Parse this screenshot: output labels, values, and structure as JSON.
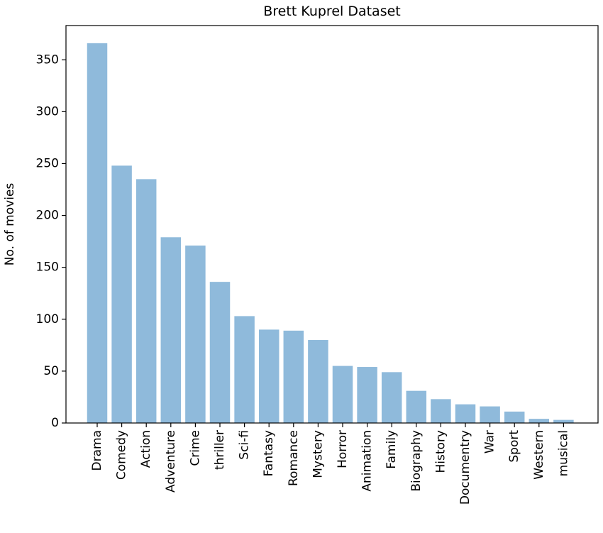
{
  "chart_data": {
    "type": "bar",
    "title": "Brett Kuprel Dataset",
    "xlabel": "",
    "ylabel": "No. of movies",
    "categories": [
      "Drama",
      "Comedy",
      "Action",
      "Adventure",
      "Crime",
      "thriller",
      "Sci-fi",
      "Fantasy",
      "Romance",
      "Mystery",
      "Horror",
      "Animation",
      "Family",
      "Biography",
      "History",
      "Documentry",
      "War",
      "Sport",
      "Western",
      "musical"
    ],
    "values": [
      366,
      248,
      235,
      179,
      171,
      136,
      103,
      90,
      89,
      80,
      55,
      54,
      49,
      31,
      23,
      18,
      16,
      11,
      4,
      3
    ],
    "ylim": [
      0,
      383
    ],
    "yticks": [
      0,
      50,
      100,
      150,
      200,
      250,
      300,
      350
    ],
    "bar_color": "#8fbadb",
    "grid": false,
    "legend": "none"
  }
}
